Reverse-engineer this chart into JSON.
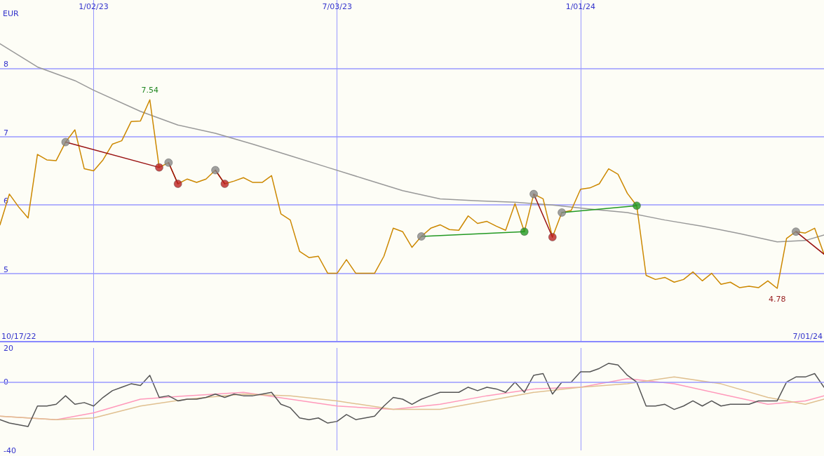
{
  "chart_data": [
    {
      "type": "line",
      "ylabel": "EUR",
      "x": [
        "2022-10-24",
        "2022-10-31",
        "2022-11-07",
        "2022-11-14",
        "2022-11-21",
        "2022-11-28",
        "2022-12-05",
        "2022-12-12",
        "2022-12-19",
        "2022-12-26",
        "2023-01-02",
        "2023-01-09",
        "2023-01-16",
        "2023-01-23",
        "2023-01-30",
        "2023-02-06",
        "2023-02-13",
        "2023-02-20",
        "2023-02-27",
        "2023-03-06",
        "2023-03-13",
        "2023-03-20",
        "2023-03-27",
        "2023-04-03",
        "2023-04-10",
        "2023-04-17",
        "2023-04-24",
        "2023-05-01",
        "2023-05-08",
        "2023-05-15",
        "2023-05-22",
        "2023-05-29",
        "2023-06-05",
        "2023-06-12",
        "2023-06-19",
        "2023-06-26",
        "2023-07-03",
        "2023-07-10",
        "2023-07-17",
        "2023-07-24",
        "2023-07-31",
        "2023-08-07",
        "2023-08-14",
        "2023-08-21",
        "2023-08-28",
        "2023-09-04",
        "2023-09-11",
        "2023-09-18",
        "2023-09-25",
        "2023-10-02",
        "2023-10-09",
        "2023-10-16",
        "2023-10-23",
        "2023-10-30",
        "2023-11-06",
        "2023-11-13",
        "2023-11-20",
        "2023-11-27",
        "2023-12-04",
        "2023-12-11",
        "2023-12-18",
        "2023-12-25",
        "2024-01-01",
        "2024-01-08",
        "2024-01-15",
        "2024-01-22",
        "2024-01-29",
        "2024-02-05",
        "2024-02-12",
        "2024-02-19",
        "2024-02-26",
        "2024-03-04",
        "2024-03-11",
        "2024-03-18",
        "2024-03-25",
        "2024-04-01",
        "2024-04-08",
        "2024-04-15",
        "2024-04-22",
        "2024-04-29",
        "2024-05-06",
        "2024-05-13",
        "2024-05-20",
        "2024-05-27",
        "2024-06-03",
        "2024-06-10",
        "2024-06-17",
        "2024-06-24",
        "2024-07-01"
      ],
      "series": [
        {
          "color": "#999999",
          "x": [
            "2022-10-24",
            "2022-11-21",
            "2022-12-19",
            "2023-01-02",
            "2023-02-06",
            "2023-03-06",
            "2023-04-03",
            "2023-05-01",
            "2023-05-29",
            "2023-06-26",
            "2023-07-24",
            "2023-08-21",
            "2023-09-18",
            "2023-10-16",
            "2023-11-13",
            "2023-12-11",
            "2024-01-08",
            "2024-02-05",
            "2024-03-04",
            "2024-04-01",
            "2024-04-29",
            "2024-05-27",
            "2024-06-17",
            "2024-07-01"
          ],
          "values": [
            8.36,
            8.02,
            7.82,
            7.68,
            7.37,
            7.17,
            7.05,
            6.89,
            6.72,
            6.55,
            6.38,
            6.21,
            6.09,
            6.06,
            6.04,
            6.0,
            5.94,
            5.89,
            5.78,
            5.69,
            5.58,
            5.46,
            5.48,
            5.56
          ]
        },
        {
          "color": "#cc8800",
          "values": [
            5.71,
            6.16,
            5.97,
            5.81,
            6.74,
            6.66,
            6.65,
            6.92,
            7.1,
            6.53,
            6.5,
            6.66,
            6.89,
            6.94,
            7.22,
            7.23,
            7.54,
            6.55,
            6.62,
            6.31,
            6.38,
            6.33,
            6.38,
            6.51,
            6.31,
            6.35,
            6.4,
            6.33,
            6.33,
            6.43,
            5.87,
            5.78,
            5.32,
            5.23,
            5.25,
            5.0,
            5.0,
            5.2,
            5.0,
            5.0,
            5.0,
            5.25,
            5.66,
            5.61,
            5.38,
            5.54,
            5.66,
            5.71,
            5.64,
            5.63,
            5.84,
            5.73,
            5.76,
            5.69,
            5.63,
            6.02,
            5.61,
            6.16,
            6.09,
            5.53,
            5.89,
            5.92,
            6.23,
            6.25,
            6.31,
            6.53,
            6.45,
            6.17,
            5.99,
            4.97,
            4.91,
            4.94,
            4.87,
            4.91,
            5.02,
            4.89,
            5.0,
            4.84,
            4.87,
            4.79,
            4.81,
            4.79,
            4.89,
            4.78,
            5.51,
            5.61,
            5.59,
            5.66,
            5.28
          ]
        },
        {
          "type": "line",
          "color": "#991111",
          "x": [
            "2022-12-12",
            "2023-02-20"
          ],
          "values": [
            6.92,
            6.55
          ]
        },
        {
          "type": "line",
          "color": "#991111",
          "x": [
            "2023-02-27",
            "2023-03-06"
          ],
          "values": [
            6.62,
            6.31
          ]
        },
        {
          "type": "line",
          "color": "#991111",
          "x": [
            "2023-04-03",
            "2023-04-10"
          ],
          "values": [
            6.51,
            6.31
          ]
        },
        {
          "type": "line",
          "color": "#229922",
          "x": [
            "2023-09-04",
            "2023-11-20"
          ],
          "values": [
            5.54,
            5.61
          ]
        },
        {
          "type": "line",
          "color": "#991111",
          "x": [
            "2023-11-27",
            "2023-12-11"
          ],
          "values": [
            6.16,
            5.53
          ]
        },
        {
          "type": "line",
          "color": "#229922",
          "x": [
            "2023-12-18",
            "2024-02-12"
          ],
          "values": [
            5.89,
            5.99
          ]
        },
        {
          "type": "line",
          "color": "#991111",
          "x": [
            "2024-06-10",
            "2024-07-01"
          ],
          "values": [
            5.61,
            5.28
          ]
        },
        {
          "type": "scatter",
          "marker": "circle",
          "color": "#888888",
          "x": [
            "2022-12-12",
            "2023-02-27",
            "2023-04-03",
            "2023-09-04",
            "2023-11-27",
            "2023-12-18",
            "2024-06-10"
          ],
          "values": [
            6.92,
            6.62,
            6.51,
            5.54,
            6.16,
            5.89,
            5.61
          ]
        },
        {
          "type": "scatter",
          "marker": "circle",
          "color": "#bb2222",
          "x": [
            "2023-02-20",
            "2023-03-06",
            "2023-04-10",
            "2023-12-11"
          ],
          "values": [
            6.55,
            6.31,
            6.31,
            5.53
          ]
        },
        {
          "type": "scatter",
          "marker": "circle",
          "color": "#229922",
          "x": [
            "2023-11-20",
            "2024-02-12"
          ],
          "values": [
            5.61,
            5.99
          ]
        }
      ],
      "marker": "none",
      "xlim": [
        "2022-10-24",
        "2024-07-01"
      ],
      "xticks": [
        {
          "value": "2023-01-02",
          "label": "1/02/23"
        },
        {
          "value": "2023-07-03",
          "label": "7/03/23"
        },
        {
          "value": "2024-01-01",
          "label": "1/01/24"
        }
      ],
      "ylim": [
        4,
        9
      ],
      "yticks": [
        5,
        6,
        7,
        8
      ],
      "grid": true,
      "annotations": [
        {
          "text": "7.54",
          "x": "2023-02-13",
          "y": 7.54
        },
        {
          "text": "4.78",
          "x": "2024-05-27",
          "y": 4.78
        },
        "10/17/22",
        "7/01/24"
      ]
    },
    {
      "type": "line",
      "marker": "none",
      "x": [
        "2022-10-24",
        "2022-10-31",
        "2022-11-07",
        "2022-11-14",
        "2022-11-21",
        "2022-11-28",
        "2022-12-05",
        "2022-12-12",
        "2022-12-19",
        "2022-12-26",
        "2023-01-02",
        "2023-01-09",
        "2023-01-16",
        "2023-01-23",
        "2023-01-30",
        "2023-02-06",
        "2023-02-13",
        "2023-02-20",
        "2023-02-27",
        "2023-03-06",
        "2023-03-13",
        "2023-03-20",
        "2023-03-27",
        "2023-04-03",
        "2023-04-10",
        "2023-04-17",
        "2023-04-24",
        "2023-05-01",
        "2023-05-08",
        "2023-05-15",
        "2023-05-22",
        "2023-05-29",
        "2023-06-05",
        "2023-06-12",
        "2023-06-19",
        "2023-06-26",
        "2023-07-03",
        "2023-07-10",
        "2023-07-17",
        "2023-07-24",
        "2023-07-31",
        "2023-08-07",
        "2023-08-14",
        "2023-08-21",
        "2023-08-28",
        "2023-09-04",
        "2023-09-11",
        "2023-09-18",
        "2023-09-25",
        "2023-10-02",
        "2023-10-09",
        "2023-10-16",
        "2023-10-23",
        "2023-10-30",
        "2023-11-06",
        "2023-11-13",
        "2023-11-20",
        "2023-11-27",
        "2023-12-04",
        "2023-12-11",
        "2023-12-18",
        "2023-12-25",
        "2024-01-01",
        "2024-01-08",
        "2024-01-15",
        "2024-01-22",
        "2024-01-29",
        "2024-02-05",
        "2024-02-12",
        "2024-02-19",
        "2024-02-26",
        "2024-03-04",
        "2024-03-11",
        "2024-03-18",
        "2024-03-25",
        "2024-04-01",
        "2024-04-08",
        "2024-04-15",
        "2024-04-22",
        "2024-04-29",
        "2024-05-06",
        "2024-05-13",
        "2024-05-20",
        "2024-05-27",
        "2024-06-03",
        "2024-06-10",
        "2024-06-17",
        "2024-06-24",
        "2024-07-01"
      ],
      "series": [
        {
          "color": "#ff99bb",
          "x": [
            "2022-10-24",
            "2022-12-05",
            "2023-01-02",
            "2023-02-06",
            "2023-03-13",
            "2023-04-24",
            "2023-05-29",
            "2023-07-03",
            "2023-08-14",
            "2023-09-18",
            "2023-10-23",
            "2023-11-27",
            "2024-01-01",
            "2024-02-05",
            "2024-03-11",
            "2024-04-15",
            "2024-05-20",
            "2024-06-17",
            "2024-07-01"
          ],
          "values": [
            -20,
            -22,
            -18,
            -10,
            -8,
            -6,
            -10,
            -14,
            -16,
            -13,
            -8,
            -4,
            -3,
            2,
            -1,
            -7,
            -13,
            -11,
            -8
          ]
        },
        {
          "color": "#e0c090",
          "x": [
            "2022-10-24",
            "2022-12-05",
            "2023-01-02",
            "2023-02-06",
            "2023-03-13",
            "2023-04-24",
            "2023-05-29",
            "2023-07-03",
            "2023-08-14",
            "2023-09-18",
            "2023-10-23",
            "2023-11-27",
            "2024-01-01",
            "2024-02-05",
            "2024-03-11",
            "2024-04-15",
            "2024-05-20",
            "2024-06-17",
            "2024-07-01"
          ],
          "values": [
            -20,
            -22,
            -21,
            -14,
            -10,
            -7,
            -8,
            -11,
            -16,
            -16,
            -11,
            -6,
            -3,
            -1,
            3,
            -1,
            -9,
            -13,
            -10
          ]
        },
        {
          "color": "#555555",
          "values": [
            -22,
            -24,
            -25,
            -26,
            -14,
            -14,
            -13,
            -8,
            -13,
            -12,
            -14,
            -9,
            -5,
            -3,
            -1,
            -2,
            4,
            -9,
            -8,
            -11,
            -10,
            -10,
            -9,
            -7,
            -9,
            -7,
            -8,
            -8,
            -7,
            -6,
            -13,
            -15,
            -21,
            -22,
            -21,
            -24,
            -23,
            -19,
            -22,
            -21,
            -20,
            -14,
            -9,
            -10,
            -13,
            -10,
            -8,
            -6,
            -6,
            -6,
            -3,
            -5,
            -3,
            -4,
            -6,
            0,
            -6,
            4,
            5,
            -7,
            0,
            0,
            6,
            6,
            8,
            11,
            10,
            4,
            0,
            -14,
            -14,
            -13,
            -16,
            -14,
            -11,
            -14,
            -11,
            -14,
            -13,
            -13,
            -13,
            -11,
            -11,
            -11,
            0,
            3,
            3,
            5,
            -3
          ]
        }
      ],
      "xlim": [
        "2022-10-24",
        "2024-07-01"
      ],
      "xticks": [
        {
          "value": "2023-01-02",
          "label": null
        },
        {
          "value": "2023-07-03",
          "label": null
        },
        {
          "value": "2024-01-01",
          "label": null
        }
      ],
      "ylim": [
        -40,
        20
      ],
      "yticks": [
        20,
        0,
        -40
      ],
      "grid": "x",
      "tick_labels": "y",
      "ref_lines": [
        {
          "axis": "y",
          "value": 0,
          "color": "#9999ff"
        }
      ]
    }
  ]
}
